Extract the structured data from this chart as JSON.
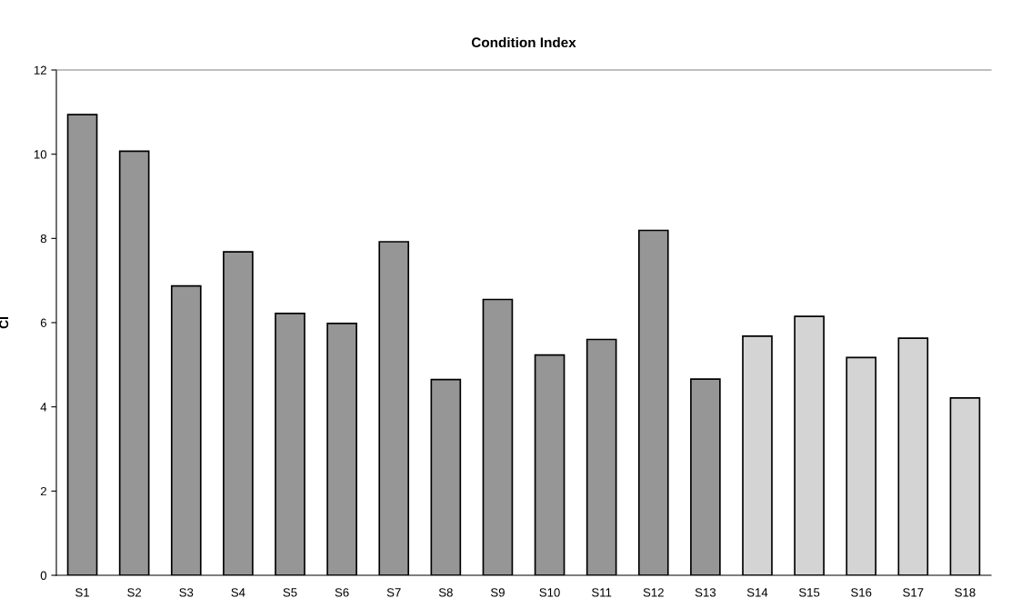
{
  "chart_data": {
    "type": "bar",
    "title": "Condition Index",
    "ylabel": "CI",
    "categories": [
      "S1",
      "S2",
      "S3",
      "S4",
      "S5",
      "S6",
      "S7",
      "S8",
      "S9",
      "S10",
      "S11",
      "S12",
      "S13",
      "S14",
      "S15",
      "S16",
      "S17",
      "S18"
    ],
    "values": [
      10.94,
      10.07,
      6.87,
      7.68,
      6.22,
      5.98,
      7.92,
      4.65,
      6.55,
      5.23,
      5.6,
      8.19,
      4.66,
      5.68,
      6.15,
      5.17,
      5.63,
      4.21
    ],
    "colors": [
      "#969696",
      "#969696",
      "#969696",
      "#969696",
      "#969696",
      "#969696",
      "#969696",
      "#969696",
      "#969696",
      "#969696",
      "#969696",
      "#969696",
      "#969696",
      "#d4d4d4",
      "#d4d4d4",
      "#d4d4d4",
      "#d4d4d4",
      "#d4d4d4"
    ],
    "ylim": [
      0,
      12
    ],
    "yticks": [
      0,
      2,
      4,
      6,
      8,
      10,
      12
    ],
    "grid": false
  }
}
